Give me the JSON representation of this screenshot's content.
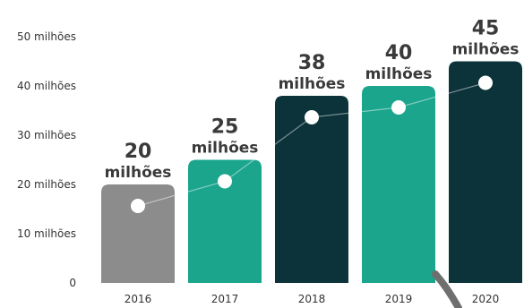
{
  "chart_data": {
    "type": "bar",
    "categories": [
      "2016",
      "2017",
      "2018",
      "2019",
      "2020"
    ],
    "values": [
      20,
      25,
      38,
      40,
      45
    ],
    "data_labels": [
      {
        "number": "20",
        "unit": "milhões"
      },
      {
        "number": "25",
        "unit": "milhões"
      },
      {
        "number": "38",
        "unit": "milhões"
      },
      {
        "number": "40",
        "unit": "milhões"
      },
      {
        "number": "45",
        "unit": "milhões"
      }
    ],
    "y_ticks": [
      {
        "value": 0,
        "label": "0"
      },
      {
        "value": 10,
        "label": "10 milhões"
      },
      {
        "value": 20,
        "label": "20 milhões"
      },
      {
        "value": 30,
        "label": "30 milhões"
      },
      {
        "value": 40,
        "label": "40 milhões"
      },
      {
        "value": 50,
        "label": "50 milhões"
      }
    ],
    "ylim": [
      0,
      55
    ],
    "grid": false,
    "legend": "none",
    "bar_colors": [
      "#8c8c8c",
      "#1aa58c",
      "#0b3339",
      "#1aa58c",
      "#0b3339"
    ],
    "marker_color": "#ffffff",
    "trend_line": true
  }
}
